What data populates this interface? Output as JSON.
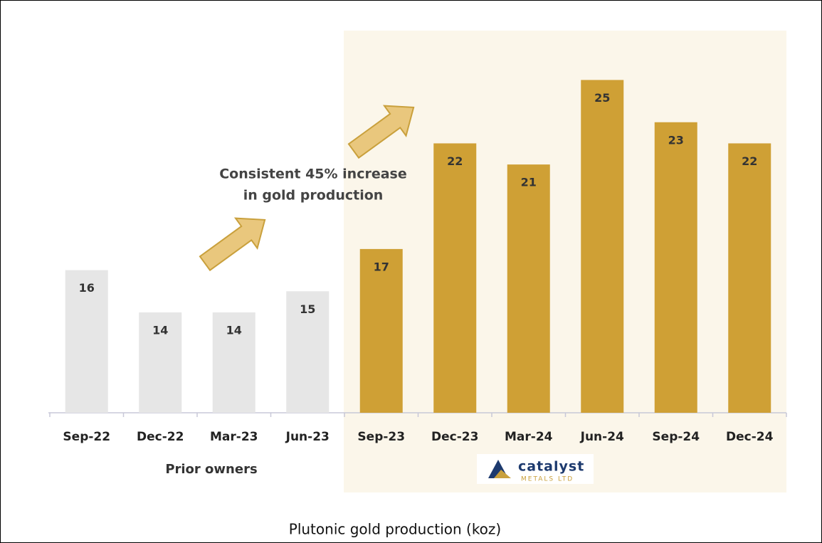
{
  "chart_data": {
    "type": "bar",
    "title": "Plutonic gold production (koz)",
    "categories": [
      "Sep-22",
      "Dec-22",
      "Mar-23",
      "Jun-23",
      "Sep-23",
      "Dec-23",
      "Mar-24",
      "Jun-24",
      "Sep-24",
      "Dec-24"
    ],
    "values": [
      16,
      14,
      14,
      15,
      17,
      22,
      21,
      25,
      23,
      22
    ],
    "colors": [
      "#e6e6e6",
      "#e6e6e6",
      "#e6e6e6",
      "#e6e6e6",
      "#cfa035",
      "#cfa035",
      "#cfa035",
      "#cfa035",
      "#cfa035",
      "#cfa035"
    ],
    "ylim": [
      9.25,
      27
    ],
    "annotation": [
      "Consistent 45% increase",
      "in gold production"
    ],
    "group_label": "Prior owners",
    "logo": {
      "name": "catalyst",
      "tagline": "METALS LTD"
    }
  }
}
